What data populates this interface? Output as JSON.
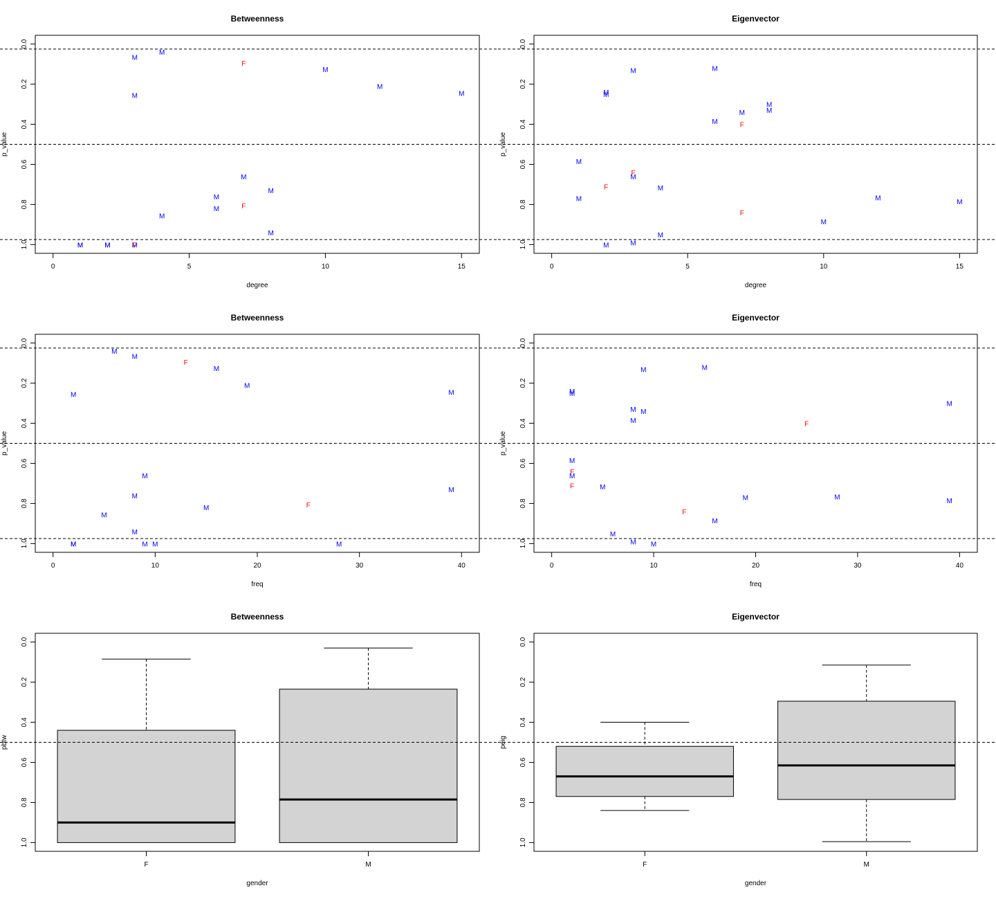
{
  "colors": {
    "male": "#0000FF",
    "female": "#FF0000",
    "box_fill": "#D3D3D3"
  },
  "chart_data": [
    {
      "type": "scatter",
      "title": "Betweenness",
      "xlabel": "degree",
      "ylabel": "p_value",
      "xlim": [
        0,
        15
      ],
      "ylim": [
        0,
        1
      ],
      "y_reversed": true,
      "xticks": [
        "0",
        "5",
        "10",
        "15"
      ],
      "yticks": [
        "0.0",
        "0.2",
        "0.4",
        "0.6",
        "0.8",
        "1.0"
      ],
      "hlines": [
        0.025,
        0.5,
        0.975
      ],
      "points": [
        {
          "x": 3,
          "y": 0.065,
          "label": "M"
        },
        {
          "x": 4,
          "y": 0.04,
          "label": "M"
        },
        {
          "x": 7,
          "y": 0.095,
          "label": "F"
        },
        {
          "x": 10,
          "y": 0.125,
          "label": "M"
        },
        {
          "x": 12,
          "y": 0.21,
          "label": "M"
        },
        {
          "x": 3,
          "y": 0.255,
          "label": "M"
        },
        {
          "x": 15,
          "y": 0.245,
          "label": "M"
        },
        {
          "x": 7,
          "y": 0.66,
          "label": "M"
        },
        {
          "x": 8,
          "y": 0.73,
          "label": "M"
        },
        {
          "x": 6,
          "y": 0.76,
          "label": "M"
        },
        {
          "x": 7,
          "y": 0.805,
          "label": "F"
        },
        {
          "x": 6,
          "y": 0.82,
          "label": "M"
        },
        {
          "x": 4,
          "y": 0.855,
          "label": "M"
        },
        {
          "x": 8,
          "y": 0.94,
          "label": "M"
        },
        {
          "x": 1,
          "y": 1.0,
          "label": "M"
        },
        {
          "x": 1,
          "y": 1.0,
          "label": "M"
        },
        {
          "x": 2,
          "y": 1.0,
          "label": "M"
        },
        {
          "x": 2,
          "y": 1.0,
          "label": "M"
        },
        {
          "x": 3,
          "y": 1.0,
          "label": "M"
        },
        {
          "x": 3,
          "y": 1.0,
          "label": "F"
        }
      ]
    },
    {
      "type": "scatter",
      "title": "Eigenvector",
      "xlabel": "degree",
      "ylabel": "p_value",
      "xlim": [
        0,
        15
      ],
      "ylim": [
        0,
        1
      ],
      "y_reversed": true,
      "xticks": [
        "0",
        "5",
        "10",
        "15"
      ],
      "yticks": [
        "0.0",
        "0.2",
        "0.4",
        "0.6",
        "0.8",
        "1.0"
      ],
      "hlines": [
        0.025,
        0.5,
        0.975
      ],
      "points": [
        {
          "x": 3,
          "y": 0.13,
          "label": "M"
        },
        {
          "x": 6,
          "y": 0.12,
          "label": "M"
        },
        {
          "x": 2,
          "y": 0.24,
          "label": "M"
        },
        {
          "x": 2,
          "y": 0.25,
          "label": "M"
        },
        {
          "x": 8,
          "y": 0.3,
          "label": "M"
        },
        {
          "x": 8,
          "y": 0.33,
          "label": "M"
        },
        {
          "x": 7,
          "y": 0.34,
          "label": "M"
        },
        {
          "x": 6,
          "y": 0.385,
          "label": "M"
        },
        {
          "x": 7,
          "y": 0.4,
          "label": "F"
        },
        {
          "x": 1,
          "y": 0.585,
          "label": "M"
        },
        {
          "x": 3,
          "y": 0.64,
          "label": "F"
        },
        {
          "x": 3,
          "y": 0.66,
          "label": "M"
        },
        {
          "x": 2,
          "y": 0.71,
          "label": "F"
        },
        {
          "x": 4,
          "y": 0.715,
          "label": "M"
        },
        {
          "x": 1,
          "y": 0.77,
          "label": "M"
        },
        {
          "x": 12,
          "y": 0.765,
          "label": "M"
        },
        {
          "x": 15,
          "y": 0.785,
          "label": "M"
        },
        {
          "x": 7,
          "y": 0.84,
          "label": "F"
        },
        {
          "x": 10,
          "y": 0.885,
          "label": "M"
        },
        {
          "x": 4,
          "y": 0.95,
          "label": "M"
        },
        {
          "x": 3,
          "y": 0.99,
          "label": "M"
        },
        {
          "x": 2,
          "y": 1.0,
          "label": "M"
        }
      ]
    },
    {
      "type": "scatter",
      "title": "Betweenness",
      "xlabel": "freq",
      "ylabel": "p_value",
      "xlim": [
        0,
        40
      ],
      "ylim": [
        0,
        1
      ],
      "y_reversed": true,
      "xticks": [
        "0",
        "10",
        "20",
        "30",
        "40"
      ],
      "yticks": [
        "0.0",
        "0.2",
        "0.4",
        "0.6",
        "0.8",
        "1.0"
      ],
      "hlines": [
        0.025,
        0.5,
        0.975
      ],
      "points": [
        {
          "x": 6,
          "y": 0.04,
          "label": "M"
        },
        {
          "x": 8,
          "y": 0.065,
          "label": "M"
        },
        {
          "x": 13,
          "y": 0.095,
          "label": "F"
        },
        {
          "x": 16,
          "y": 0.125,
          "label": "M"
        },
        {
          "x": 19,
          "y": 0.21,
          "label": "M"
        },
        {
          "x": 2,
          "y": 0.255,
          "label": "M"
        },
        {
          "x": 39,
          "y": 0.245,
          "label": "M"
        },
        {
          "x": 9,
          "y": 0.66,
          "label": "M"
        },
        {
          "x": 39,
          "y": 0.73,
          "label": "M"
        },
        {
          "x": 8,
          "y": 0.76,
          "label": "M"
        },
        {
          "x": 25,
          "y": 0.805,
          "label": "F"
        },
        {
          "x": 15,
          "y": 0.82,
          "label": "M"
        },
        {
          "x": 5,
          "y": 0.855,
          "label": "M"
        },
        {
          "x": 8,
          "y": 0.94,
          "label": "M"
        },
        {
          "x": 2,
          "y": 1.0,
          "label": "M"
        },
        {
          "x": 2,
          "y": 1.0,
          "label": "M"
        },
        {
          "x": 9,
          "y": 1.0,
          "label": "M"
        },
        {
          "x": 10,
          "y": 1.0,
          "label": "M"
        },
        {
          "x": 28,
          "y": 1.0,
          "label": "M"
        }
      ]
    },
    {
      "type": "scatter",
      "title": "Eigenvector",
      "xlabel": "freq",
      "ylabel": "p_value",
      "xlim": [
        0,
        40
      ],
      "ylim": [
        0,
        1
      ],
      "y_reversed": true,
      "xticks": [
        "0",
        "10",
        "20",
        "30",
        "40"
      ],
      "yticks": [
        "0.0",
        "0.2",
        "0.4",
        "0.6",
        "0.8",
        "1.0"
      ],
      "hlines": [
        0.025,
        0.5,
        0.975
      ],
      "points": [
        {
          "x": 9,
          "y": 0.13,
          "label": "M"
        },
        {
          "x": 15,
          "y": 0.12,
          "label": "M"
        },
        {
          "x": 2,
          "y": 0.24,
          "label": "M"
        },
        {
          "x": 2,
          "y": 0.25,
          "label": "M"
        },
        {
          "x": 39,
          "y": 0.3,
          "label": "M"
        },
        {
          "x": 8,
          "y": 0.33,
          "label": "M"
        },
        {
          "x": 9,
          "y": 0.34,
          "label": "M"
        },
        {
          "x": 8,
          "y": 0.385,
          "label": "M"
        },
        {
          "x": 25,
          "y": 0.4,
          "label": "F"
        },
        {
          "x": 2,
          "y": 0.585,
          "label": "M"
        },
        {
          "x": 2,
          "y": 0.64,
          "label": "F"
        },
        {
          "x": 2,
          "y": 0.66,
          "label": "M"
        },
        {
          "x": 2,
          "y": 0.71,
          "label": "F"
        },
        {
          "x": 5,
          "y": 0.715,
          "label": "M"
        },
        {
          "x": 19,
          "y": 0.77,
          "label": "M"
        },
        {
          "x": 28,
          "y": 0.765,
          "label": "M"
        },
        {
          "x": 39,
          "y": 0.785,
          "label": "M"
        },
        {
          "x": 13,
          "y": 0.84,
          "label": "F"
        },
        {
          "x": 16,
          "y": 0.885,
          "label": "M"
        },
        {
          "x": 6,
          "y": 0.95,
          "label": "M"
        },
        {
          "x": 8,
          "y": 0.99,
          "label": "M"
        },
        {
          "x": 10,
          "y": 1.0,
          "label": "M"
        }
      ]
    },
    {
      "type": "box",
      "title": "Betweenness",
      "xlabel": "gender",
      "ylabel": "pbtw",
      "ylim": [
        0,
        1
      ],
      "y_reversed": true,
      "yticks": [
        "0.0",
        "0.2",
        "0.4",
        "0.6",
        "0.8",
        "1.0"
      ],
      "hlines": [
        0.5
      ],
      "groups": [
        {
          "name": "F",
          "whisker_low": 0.085,
          "q1": 0.44,
          "median": 0.9,
          "q3": 1.0,
          "whisker_high": 1.0
        },
        {
          "name": "M",
          "whisker_low": 0.03,
          "q1": 0.235,
          "median": 0.785,
          "q3": 1.0,
          "whisker_high": 1.0
        }
      ]
    },
    {
      "type": "box",
      "title": "Eigenvector",
      "xlabel": "gender",
      "ylabel": "peig",
      "ylim": [
        0,
        1
      ],
      "y_reversed": true,
      "yticks": [
        "0.0",
        "0.2",
        "0.4",
        "0.6",
        "0.8",
        "1.0"
      ],
      "hlines": [
        0.5
      ],
      "groups": [
        {
          "name": "F",
          "whisker_low": 0.4,
          "q1": 0.52,
          "median": 0.67,
          "q3": 0.77,
          "whisker_high": 0.84
        },
        {
          "name": "M",
          "whisker_low": 0.115,
          "q1": 0.295,
          "median": 0.615,
          "q3": 0.785,
          "whisker_high": 0.995
        }
      ]
    }
  ]
}
